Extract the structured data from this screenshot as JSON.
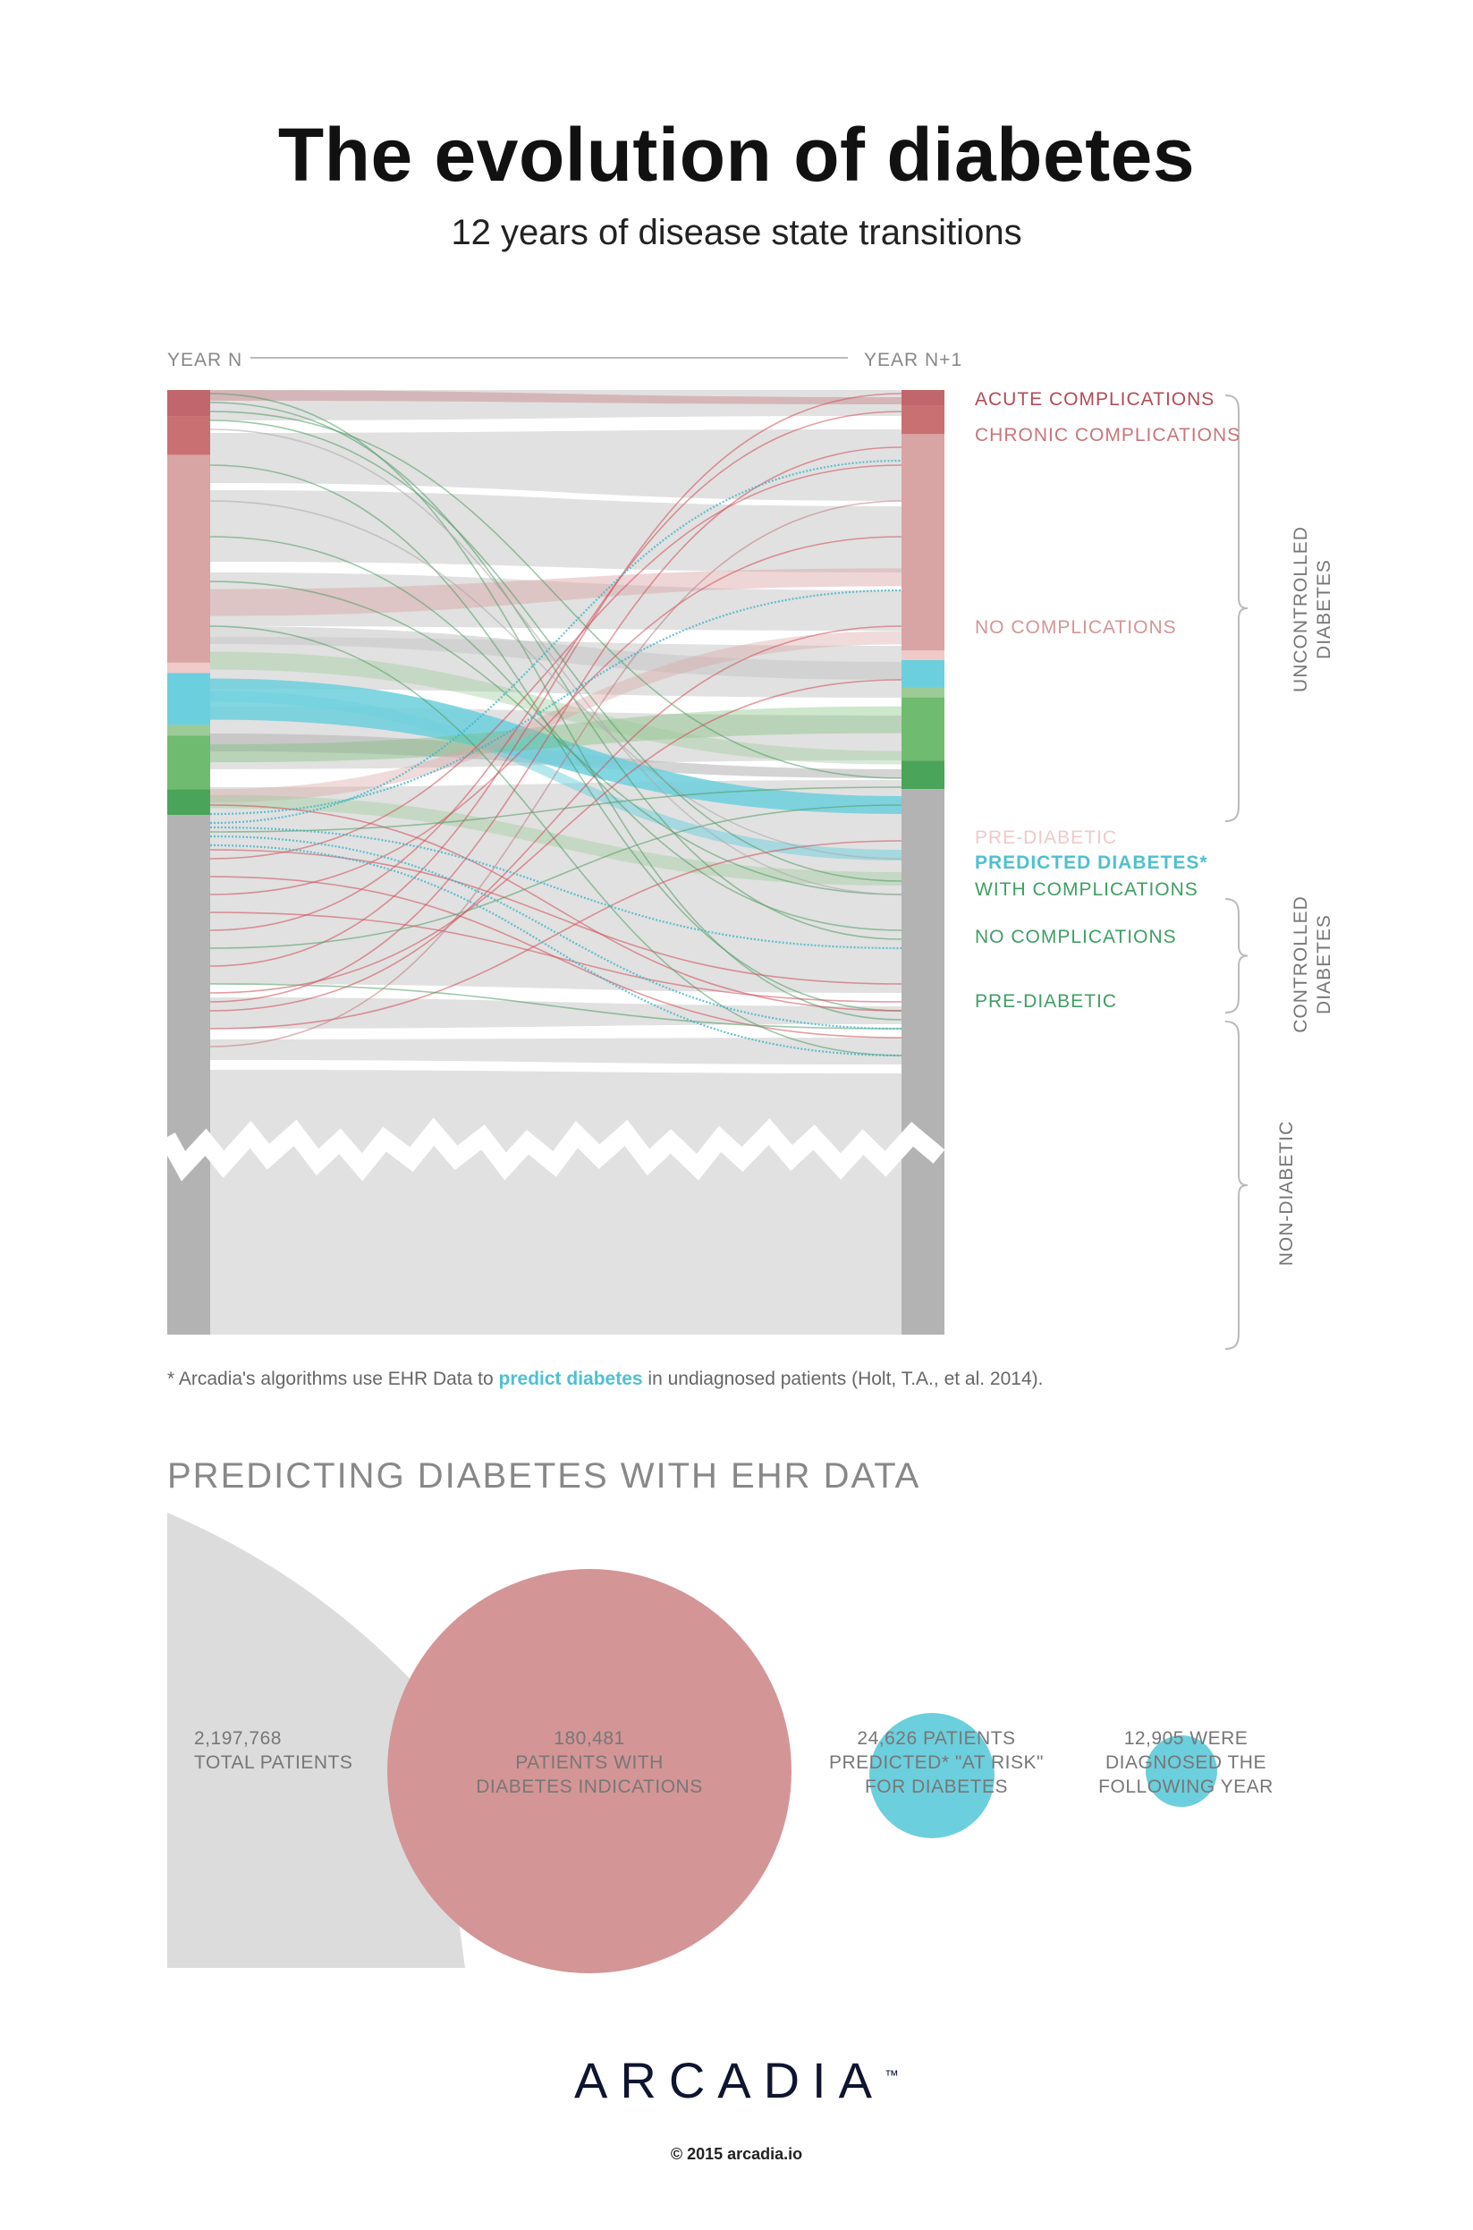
{
  "header": {
    "title": "The evolution of diabetes",
    "subtitle": "12 years of disease state transitions"
  },
  "colors": {
    "acute": "#c1666c",
    "chronic": "#c97073",
    "uncontrolled_no": "#d9a4a4",
    "uncontrolled_pre": "#f0c9c9",
    "predicted": "#6ccfdd",
    "controlled_with": "#9ccb97",
    "controlled_no": "#6fbb6f",
    "controlled_pre": "#4aa45a",
    "non_diabetic": "#b3b3b3",
    "flow_grey": "#e1e1e1",
    "big_bubble": "#d49596",
    "small_bubble": "#6ccfdd",
    "grey_area": "#dcdcdc"
  },
  "chart_data": [
    {
      "type": "sankey",
      "title": "The evolution of diabetes",
      "left_axis_label": "YEAR N",
      "right_axis_label": "YEAR N+1",
      "categories": [
        {
          "id": "acute",
          "label": "ACUTE COMPLICATIONS",
          "group": "uncontrolled"
        },
        {
          "id": "chronic",
          "label": "CHRONIC COMPLICATIONS",
          "group": "uncontrolled"
        },
        {
          "id": "uncontrolled_no",
          "label": "NO COMPLICATIONS",
          "group": "uncontrolled"
        },
        {
          "id": "uncontrolled_pre",
          "label": "PRE-DIABETIC",
          "group": "uncontrolled"
        },
        {
          "id": "predicted",
          "label": "PREDICTED DIABETES*",
          "group": "predicted"
        },
        {
          "id": "controlled_with",
          "label": "WITH COMPLICATIONS",
          "group": "controlled"
        },
        {
          "id": "controlled_no",
          "label": "NO COMPLICATIONS",
          "group": "controlled"
        },
        {
          "id": "controlled_pre",
          "label": "PRE-DIABETIC",
          "group": "controlled"
        },
        {
          "id": "non_diabetic",
          "label": "",
          "group": "non_diabetic"
        }
      ],
      "left_shares": [
        3,
        4.5,
        24,
        1.2,
        6,
        1.2,
        6.2,
        3,
        60
      ],
      "right_shares": [
        1.8,
        3.3,
        25,
        1.1,
        3.2,
        1.1,
        7.3,
        3.3,
        63
      ],
      "groups": [
        {
          "id": "uncontrolled",
          "label_line1": "UNCONTROLLED",
          "label_line2": "DIABETES"
        },
        {
          "id": "controlled",
          "label_line1": "CONTROLLED",
          "label_line2": "DIABETES"
        },
        {
          "id": "non_diabetic",
          "label_line1": "NON-DIABETIC",
          "label_line2": ""
        }
      ]
    },
    {
      "type": "bubble",
      "title": "PREDICTING DIABETES WITH EHR DATA",
      "series": [
        {
          "name": "total",
          "value": 2197768,
          "line1": "2,197,768",
          "line2": "TOTAL PATIENTS",
          "line3": ""
        },
        {
          "name": "indications",
          "value": 180481,
          "line1": "180,481",
          "line2": "PATIENTS WITH",
          "line3": "DIABETES INDICATIONS"
        },
        {
          "name": "predicted",
          "value": 24626,
          "line1": "24,626 PATIENTS",
          "line2": "PREDICTED* \"AT RISK\"",
          "line3": "FOR DIABETES"
        },
        {
          "name": "diagnosed",
          "value": 12905,
          "line1": "12,905 WERE",
          "line2": "DIAGNOSED THE",
          "line3": "FOLLOWING YEAR"
        }
      ]
    }
  ],
  "footnote": {
    "prefix": "* Arcadia's algorithms use EHR Data to ",
    "highlight": "predict diabetes",
    "suffix": " in undiagnosed patients (Holt, T.A., et al. 2014)."
  },
  "brand": {
    "name": "ARCADIA",
    "tm": "™",
    "copyright": "© 2015 arcadia.io"
  }
}
